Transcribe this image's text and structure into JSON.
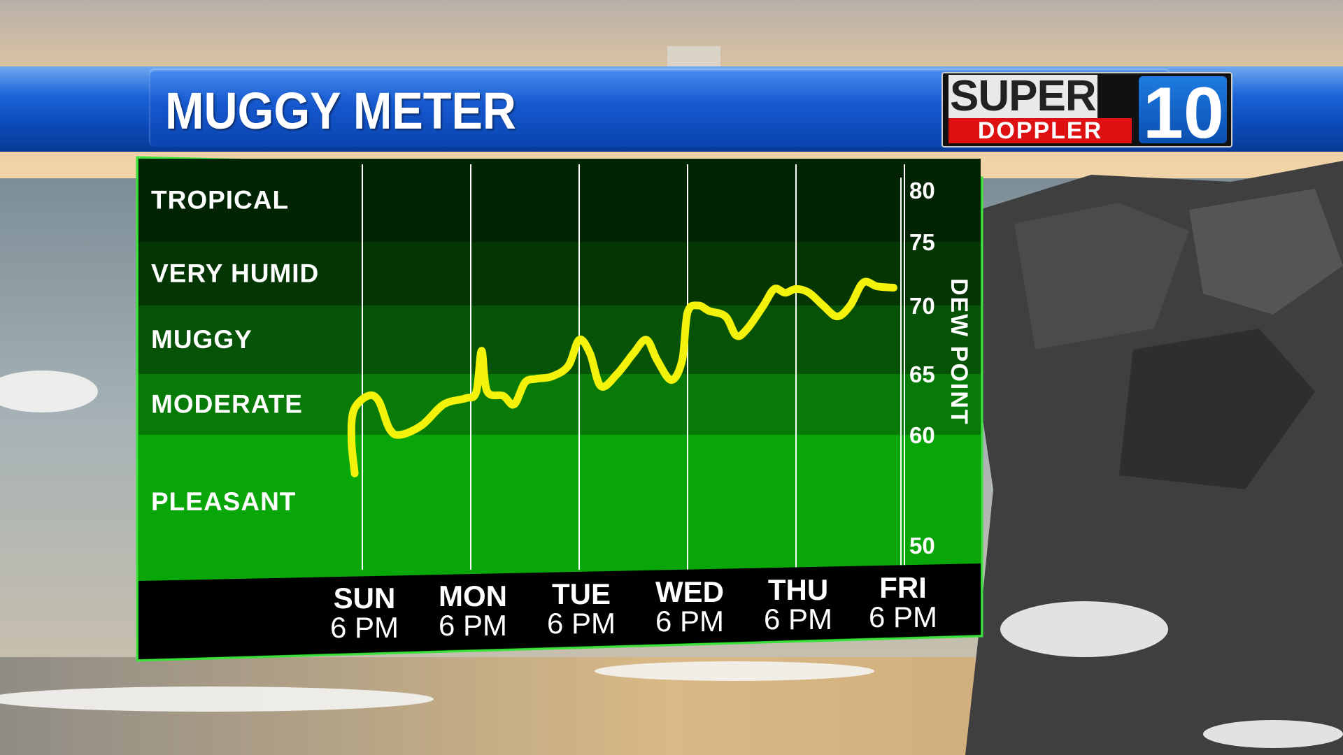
{
  "header": {
    "title": "MUGGY METER",
    "logo_top": "SUPER",
    "logo_bottom": "DOPPLER",
    "logo_number": "10"
  },
  "colors": {
    "title_bar": "#1558cc",
    "chart_green_dark": "#022402",
    "chart_green_light": "#08a608",
    "line": "#f2f20a",
    "axis_bar": "#000000"
  },
  "chart_data": {
    "type": "line",
    "title": "MUGGY METER",
    "ylabel": "DEW POINT",
    "ylim": [
      50,
      80
    ],
    "yticks": [
      50,
      60,
      65,
      70,
      75,
      80
    ],
    "x_labels": [
      {
        "day": "SUN",
        "time": "6 PM"
      },
      {
        "day": "MON",
        "time": "6 PM"
      },
      {
        "day": "TUE",
        "time": "6 PM"
      },
      {
        "day": "WED",
        "time": "6 PM"
      },
      {
        "day": "THU",
        "time": "6 PM"
      },
      {
        "day": "FRI",
        "time": "6 PM"
      }
    ],
    "categories": [
      {
        "label": "TROPICAL",
        "from": 75,
        "to": 80
      },
      {
        "label": "VERY HUMID",
        "from": 70,
        "to": 75
      },
      {
        "label": "MUGGY",
        "from": 65,
        "to": 70
      },
      {
        "label": "MODERATE",
        "from": 60,
        "to": 65
      },
      {
        "label": "PLEASANT",
        "from": 50,
        "to": 60
      }
    ],
    "x_unit_note": "days after Sunday 6 PM",
    "series": [
      {
        "points": [
          [
            -0.07,
            56.5
          ],
          [
            -0.1,
            59.5
          ],
          [
            -0.08,
            62.0
          ],
          [
            0.05,
            63.2
          ],
          [
            0.15,
            62.8
          ],
          [
            0.25,
            60.5
          ],
          [
            0.35,
            60.0
          ],
          [
            0.55,
            60.8
          ],
          [
            0.75,
            62.5
          ],
          [
            0.95,
            63.0
          ],
          [
            1.05,
            63.5
          ],
          [
            1.1,
            66.7
          ],
          [
            1.15,
            63.6
          ],
          [
            1.3,
            63.2
          ],
          [
            1.4,
            62.5
          ],
          [
            1.5,
            64.3
          ],
          [
            1.6,
            64.6
          ],
          [
            1.75,
            64.8
          ],
          [
            1.9,
            65.6
          ],
          [
            2.0,
            67.5
          ],
          [
            2.1,
            66.5
          ],
          [
            2.2,
            64.0
          ],
          [
            2.35,
            65.0
          ],
          [
            2.5,
            66.5
          ],
          [
            2.62,
            67.5
          ],
          [
            2.72,
            66.0
          ],
          [
            2.85,
            64.5
          ],
          [
            2.95,
            66.0
          ],
          [
            3.0,
            69.5
          ],
          [
            3.1,
            70.0
          ],
          [
            3.2,
            69.6
          ],
          [
            3.35,
            69.2
          ],
          [
            3.45,
            67.8
          ],
          [
            3.55,
            68.3
          ],
          [
            3.7,
            70.0
          ],
          [
            3.8,
            71.3
          ],
          [
            3.9,
            71.0
          ],
          [
            4.0,
            71.3
          ],
          [
            4.12,
            71.0
          ],
          [
            4.25,
            70.0
          ],
          [
            4.38,
            69.2
          ],
          [
            4.5,
            70.0
          ],
          [
            4.62,
            71.8
          ],
          [
            4.75,
            71.5
          ],
          [
            4.9,
            71.4
          ]
        ]
      }
    ],
    "grid": true
  }
}
